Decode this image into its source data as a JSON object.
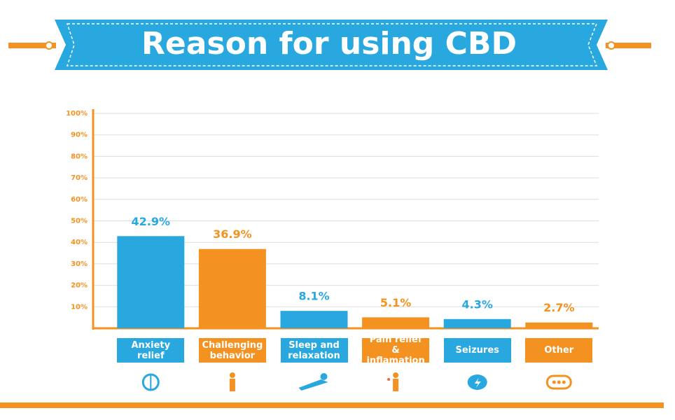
{
  "chart_data": {
    "type": "bar",
    "title": "Reason for using CBD",
    "categories": [
      "Anxiety relief",
      "Challenging behavior",
      "Sleep and relaxation",
      "Pain relief & inflamation",
      "Seizures",
      "Other"
    ],
    "values": [
      42.9,
      36.9,
      8.1,
      5.1,
      4.3,
      2.7
    ],
    "value_labels": [
      "42.9%",
      "36.9%",
      "8.1%",
      "5.1%",
      "4.3%",
      "2.7%"
    ],
    "colors": [
      "#29a8e0",
      "#f39221",
      "#29a8e0",
      "#f39221",
      "#29a8e0",
      "#f39221"
    ],
    "ylim": [
      0,
      100
    ],
    "yticks": [
      {
        "value": 10,
        "label": "10%"
      },
      {
        "value": 20,
        "label": "20%"
      },
      {
        "value": 30,
        "label": "30%"
      },
      {
        "value": 40,
        "label": "40%"
      },
      {
        "value": 50,
        "label": "50%"
      },
      {
        "value": 60,
        "label": "60%"
      },
      {
        "value": 70,
        "label": "70%"
      },
      {
        "value": 80,
        "label": "80%"
      },
      {
        "value": 90,
        "label": "90%"
      },
      {
        "value": 100,
        "label": "100%"
      }
    ],
    "grid": true
  }
}
